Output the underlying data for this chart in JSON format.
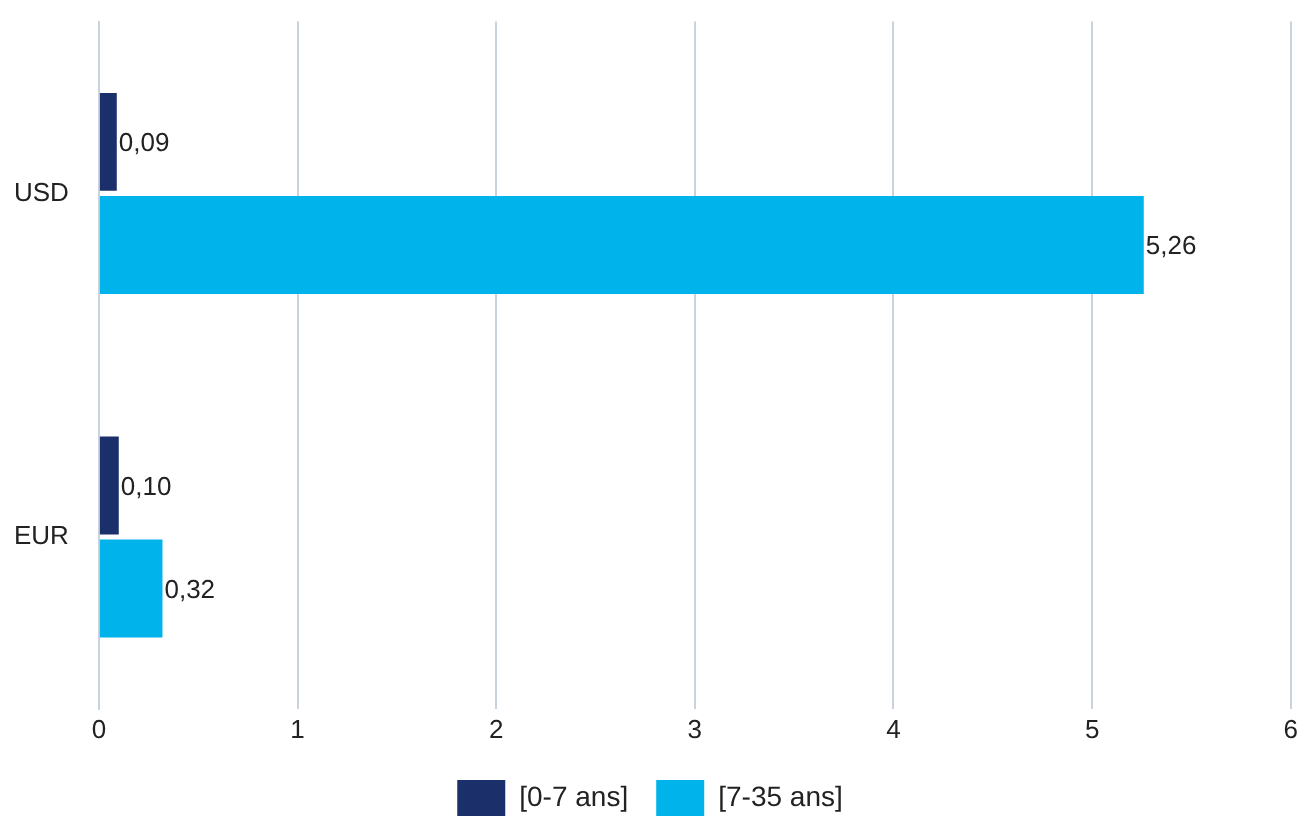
{
  "chart_data": {
    "type": "bar",
    "orientation": "horizontal",
    "categories": [
      "USD",
      "EUR"
    ],
    "series": [
      {
        "name": "[0-7 ans]",
        "color": "#1b2f6b",
        "values": [
          0.09,
          0.1
        ],
        "value_labels": [
          "0,09",
          "0,10"
        ]
      },
      {
        "name": "[7-35 ans]",
        "color": "#00b4eb",
        "values": [
          5.26,
          0.32
        ],
        "value_labels": [
          "5,26",
          "0,32"
        ]
      }
    ],
    "xlim": [
      0,
      6
    ],
    "xticks": [
      0,
      1,
      2,
      3,
      4,
      5,
      6
    ],
    "grid": "x",
    "legend": "bottom"
  }
}
